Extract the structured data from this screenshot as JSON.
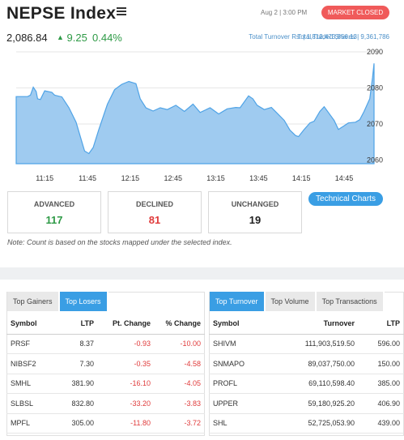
{
  "header": {
    "title": "NEPSE Index",
    "date_time": "Aug 2 | 3:00 PM",
    "market_status": "MARKET CLOSED",
    "index_value": "2,086.84",
    "change_arrow": "^",
    "change": "9.25",
    "change_pct": "0.44%",
    "total_turnover": "Total Turnover Rs: | 1,812,473,856.13",
    "total_traded_shares": "Total Traded Shares | 9,361,786"
  },
  "colors": {
    "positive": "#2e9a46",
    "negative": "#e03b3b",
    "accent": "#3a9ee4",
    "badge": "#f05a5a"
  },
  "chart_data": {
    "type": "area",
    "x_ticks": [
      "11:15",
      "11:45",
      "12:15",
      "12:45",
      "13:15",
      "13:45",
      "14:15",
      "14:45"
    ],
    "y_ticks": [
      "2090",
      "2080",
      "2070",
      "2060"
    ],
    "ylim": [
      2059,
      2090
    ],
    "x_range_minutes": [
      655,
      906
    ],
    "x_tick_minutes": [
      675,
      705,
      735,
      765,
      795,
      825,
      855,
      885
    ],
    "points": [
      [
        655,
        2077.6
      ],
      [
        663,
        2077.6
      ],
      [
        665,
        2078.0
      ],
      [
        667,
        2080.2
      ],
      [
        669,
        2079.0
      ],
      [
        670,
        2077.0
      ],
      [
        672,
        2076.8
      ],
      [
        675,
        2079.2
      ],
      [
        680,
        2078.8
      ],
      [
        682,
        2078.0
      ],
      [
        687,
        2077.5
      ],
      [
        692,
        2074.5
      ],
      [
        697,
        2070.5
      ],
      [
        700,
        2066.5
      ],
      [
        703,
        2062.5
      ],
      [
        706,
        2061.8
      ],
      [
        709,
        2063.5
      ],
      [
        713,
        2068.5
      ],
      [
        719,
        2075.5
      ],
      [
        724,
        2079.5
      ],
      [
        729,
        2081.0
      ],
      [
        734,
        2081.8
      ],
      [
        739,
        2081.2
      ],
      [
        742,
        2077.0
      ],
      [
        746,
        2074.5
      ],
      [
        751,
        2073.6
      ],
      [
        756,
        2074.5
      ],
      [
        761,
        2074.0
      ],
      [
        767,
        2075.2
      ],
      [
        773,
        2073.5
      ],
      [
        779,
        2075.5
      ],
      [
        784,
        2073.2
      ],
      [
        791,
        2074.5
      ],
      [
        797,
        2072.8
      ],
      [
        803,
        2074.2
      ],
      [
        809,
        2074.6
      ],
      [
        812,
        2074.5
      ],
      [
        818,
        2077.8
      ],
      [
        821,
        2077.0
      ],
      [
        824,
        2075.2
      ],
      [
        829,
        2074.0
      ],
      [
        834,
        2074.6
      ],
      [
        838,
        2073.0
      ],
      [
        843,
        2071.0
      ],
      [
        847,
        2068.3
      ],
      [
        851,
        2066.8
      ],
      [
        853,
        2066.5
      ],
      [
        857,
        2068.5
      ],
      [
        861,
        2070.3
      ],
      [
        864,
        2070.8
      ],
      [
        868,
        2073.5
      ],
      [
        871,
        2074.8
      ],
      [
        874,
        2073.2
      ],
      [
        878,
        2071.0
      ],
      [
        881,
        2068.5
      ],
      [
        885,
        2069.5
      ],
      [
        888,
        2070.3
      ],
      [
        893,
        2070.5
      ],
      [
        896,
        2071.2
      ],
      [
        899,
        2073.5
      ],
      [
        903,
        2077.0
      ],
      [
        905,
        2083.0
      ],
      [
        906,
        2086.8
      ]
    ]
  },
  "stats": {
    "advanced": {
      "label": "ADVANCED",
      "value": "117"
    },
    "declined": {
      "label": "DECLINED",
      "value": "81"
    },
    "unchanged": {
      "label": "UNCHANGED",
      "value": "19"
    }
  },
  "technical_charts_label": "Technical Charts",
  "note": "Note: Count is based on the stocks mapped under the selected index.",
  "left_panel": {
    "tabs": [
      {
        "label": "Top Gainers",
        "active": false
      },
      {
        "label": "Top Losers",
        "active": true
      }
    ],
    "columns": [
      "Symbol",
      "LTP",
      "Pt. Change",
      "% Change"
    ],
    "rows": [
      {
        "symbol": "PRSF",
        "ltp": "8.37",
        "pt_change": "-0.93",
        "pct_change": "-10.00"
      },
      {
        "symbol": "NIBSF2",
        "ltp": "7.30",
        "pt_change": "-0.35",
        "pct_change": "-4.58"
      },
      {
        "symbol": "SMHL",
        "ltp": "381.90",
        "pt_change": "-16.10",
        "pct_change": "-4.05"
      },
      {
        "symbol": "SLBSL",
        "ltp": "832.80",
        "pt_change": "-33.20",
        "pct_change": "-3.83"
      },
      {
        "symbol": "MPFL",
        "ltp": "305.00",
        "pt_change": "-11.80",
        "pct_change": "-3.72"
      }
    ]
  },
  "right_panel": {
    "tabs": [
      {
        "label": "Top Turnover",
        "active": true
      },
      {
        "label": "Top Volume",
        "active": false
      },
      {
        "label": "Top Transactions",
        "active": false
      }
    ],
    "columns": [
      "Symbol",
      "Turnover",
      "LTP"
    ],
    "rows": [
      {
        "symbol": "SHIVM",
        "turnover": "111,903,519.50",
        "ltp": "596.00"
      },
      {
        "symbol": "SNMAPO",
        "turnover": "89,037,750.00",
        "ltp": "150.00"
      },
      {
        "symbol": "PROFL",
        "turnover": "69,110,598.40",
        "ltp": "385.00"
      },
      {
        "symbol": "UPPER",
        "turnover": "59,180,925.20",
        "ltp": "406.90"
      },
      {
        "symbol": "SHL",
        "turnover": "52,725,053.90",
        "ltp": "439.00"
      }
    ]
  }
}
